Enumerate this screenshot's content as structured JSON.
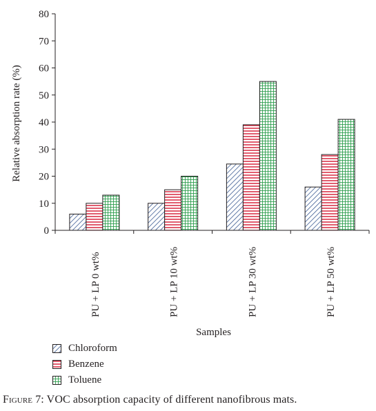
{
  "chart_data": {
    "type": "bar",
    "title": "",
    "xlabel": "Samples",
    "ylabel": "Relative absorption rate (%)",
    "ylim": [
      0,
      80
    ],
    "yticks": [
      0,
      10,
      20,
      30,
      40,
      50,
      60,
      70,
      80
    ],
    "categories": [
      "PU + LP 0 wt%",
      "PU + LP 10 wt%",
      "PU + LP 30 wt%",
      "PU + LP 50 wt%"
    ],
    "series": [
      {
        "name": "Chloroform",
        "values": [
          6,
          10,
          24.5,
          16
        ],
        "color": "#3b5b92",
        "pattern": "diagonal-hatch"
      },
      {
        "name": "Benzene",
        "values": [
          10,
          15,
          39,
          28
        ],
        "color": "#d7263d",
        "pattern": "horizontal-lines"
      },
      {
        "name": "Toluene",
        "values": [
          13,
          20,
          55,
          41
        ],
        "color": "#2e9e4f",
        "pattern": "grid"
      }
    ],
    "legend_position": "bottom-left"
  },
  "caption": {
    "figure_label": "Figure 7:",
    "text": "VOC absorption capacity of different nanofibrous mats."
  }
}
